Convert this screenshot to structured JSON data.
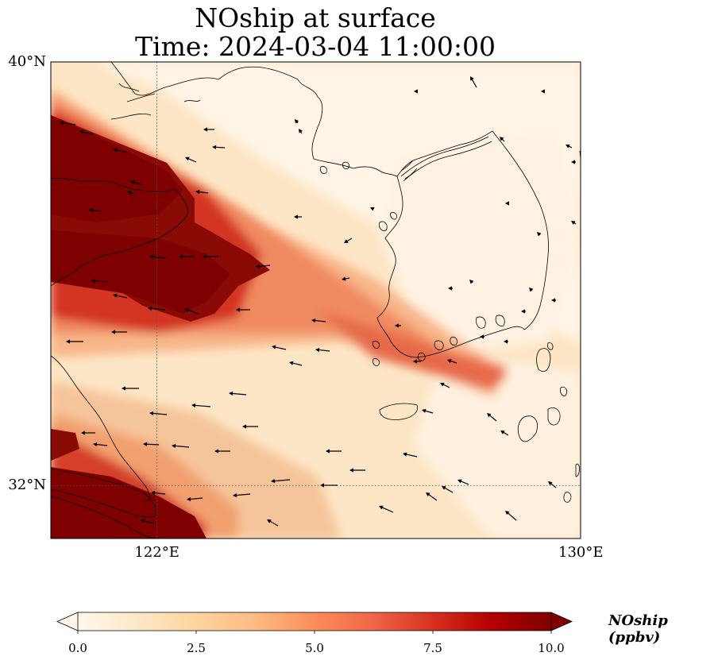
{
  "title": {
    "line1": "NOship at surface",
    "line2": "Time: 2024-03-04 11:00:00"
  },
  "map": {
    "extent": {
      "lon": [
        120,
        130
      ],
      "lat": [
        31,
        40
      ]
    },
    "lat_ticks": [
      {
        "value": 40,
        "label": "40°N"
      },
      {
        "value": 32,
        "label": "32°N"
      }
    ],
    "lon_ticks": [
      {
        "value": 122,
        "label": "122°E"
      },
      {
        "value": 130,
        "label": "130°E"
      }
    ],
    "gridlines": "dotted",
    "variable": "NOship",
    "level": "surface",
    "colormap": "OrRd",
    "colors": {
      "coast": "#000000",
      "arrow": "#000000"
    }
  },
  "colorbar": {
    "label": "NOship (ppbv)",
    "min": 0.0,
    "max": 10.0,
    "extend": "both",
    "ticks": [
      {
        "value": 0.0,
        "label": "0.0"
      },
      {
        "value": 2.5,
        "label": "2.5"
      },
      {
        "value": 5.0,
        "label": "5.0"
      },
      {
        "value": 7.5,
        "label": "7.5"
      },
      {
        "value": 10.0,
        "label": "10.0"
      }
    ],
    "stops": [
      "#fff7ec",
      "#fee8c8",
      "#fdd49e",
      "#fdbb84",
      "#fc8d59",
      "#ef6548",
      "#d7301f",
      "#b30000",
      "#7f0000"
    ]
  }
}
